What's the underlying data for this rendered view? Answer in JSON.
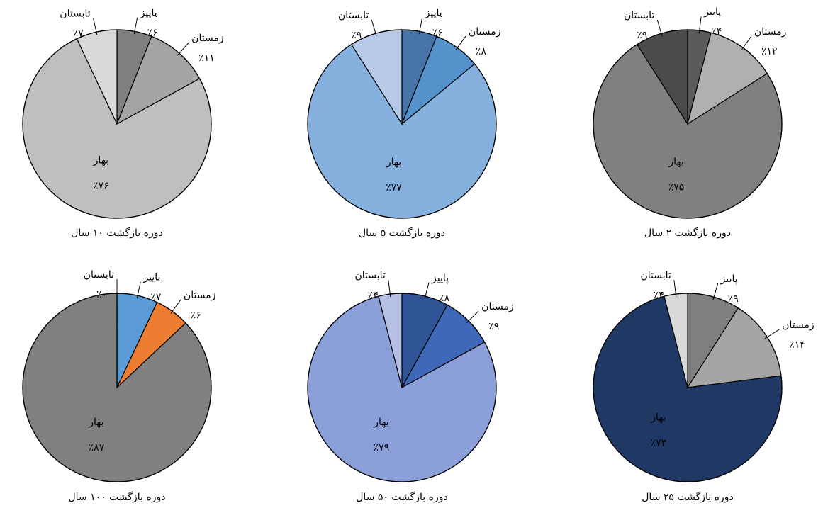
{
  "chart_data": [
    {
      "type": "pie",
      "title": "دوره بازگشت ۱۰ سال",
      "categories": [
        "پاییز",
        "زمستان",
        "بهار",
        "تابستان"
      ],
      "values": [
        6,
        11,
        76,
        7
      ],
      "value_labels": [
        "٪۶",
        "٪۱۱",
        "٪۷۶",
        "٪۷"
      ],
      "colors": [
        "#7f7f7f",
        "#a5a5a5",
        "#bfbfbf",
        "#d9d9d9"
      ]
    },
    {
      "type": "pie",
      "title": "دوره بازگشت ۵ سال",
      "categories": [
        "پاییز",
        "زمستان",
        "بهار",
        "تابستان"
      ],
      "values": [
        6,
        8,
        77,
        9
      ],
      "value_labels": [
        "٪۶",
        "٪۸",
        "٪۷۷",
        "٪۹"
      ],
      "colors": [
        "#4673a8",
        "#5592cc",
        "#86b0de",
        "#b7cbe8"
      ]
    },
    {
      "type": "pie",
      "title": "دوره بازگشت ۲ سال",
      "categories": [
        "پاییز",
        "زمستان",
        "بهار",
        "تابستان"
      ],
      "values": [
        4,
        12,
        75,
        9
      ],
      "value_labels": [
        "٪۴",
        "٪۱۲",
        "٪۷۵",
        "٪۹"
      ],
      "colors": [
        "#5a5a5a",
        "#b0b0b0",
        "#808080",
        "#4b4b4b"
      ]
    },
    {
      "type": "pie",
      "title": "دوره بازگشت ۱۰۰ سال",
      "categories": [
        "پاییز",
        "زمستان",
        "بهار",
        "تابستان"
      ],
      "values": [
        7,
        6,
        87,
        0
      ],
      "value_labels": [
        "٪۷",
        "٪۶",
        "٪۸۷",
        "٪۰"
      ],
      "colors": [
        "#5b9bd5",
        "#ed7d31",
        "#808080",
        "#a5a5a5"
      ]
    },
    {
      "type": "pie",
      "title": "دوره بازگشت ۵۰ سال",
      "categories": [
        "پاییز",
        "زمستان",
        "بهار",
        "تابستان"
      ],
      "values": [
        8,
        9,
        79,
        4
      ],
      "value_labels": [
        "٪۸",
        "٪۹",
        "٪۷۹",
        "٪۴"
      ],
      "colors": [
        "#2f5597",
        "#4068b8",
        "#8b9fd9",
        "#b5c0e4"
      ]
    },
    {
      "type": "pie",
      "title": "دوره بازگشت ۲۵ سال",
      "categories": [
        "پاییز",
        "زمستان",
        "بهار",
        "تابستان"
      ],
      "values": [
        9,
        14,
        73,
        4
      ],
      "value_labels": [
        "٪۹",
        "٪۱۴",
        "٪۷۳",
        "٪۴"
      ],
      "colors": [
        "#7f7f7f",
        "#a5a5a5",
        "#203864",
        "#d9d9d9"
      ]
    }
  ]
}
